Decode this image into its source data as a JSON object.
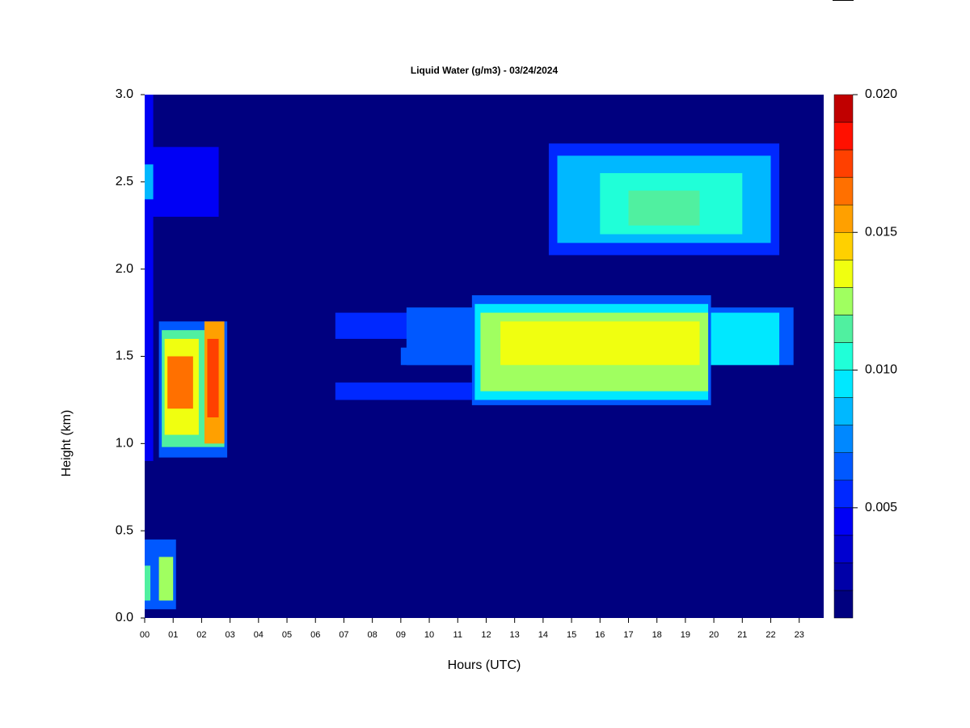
{
  "chart_data": {
    "type": "heatmap",
    "title": "Liquid Water (g/m3) - 03/24/2024",
    "xlabel": "Hours (UTC)",
    "ylabel": "Height (km)",
    "xlim": [
      0,
      23.86
    ],
    "ylim": [
      0,
      3
    ],
    "xticks": [
      {
        "value": 0,
        "label": "00"
      },
      {
        "value": 1,
        "label": "01"
      },
      {
        "value": 2,
        "label": "02"
      },
      {
        "value": 3,
        "label": "03"
      },
      {
        "value": 4,
        "label": "04"
      },
      {
        "value": 5,
        "label": "05"
      },
      {
        "value": 6,
        "label": "06"
      },
      {
        "value": 7,
        "label": "07"
      },
      {
        "value": 8,
        "label": "08"
      },
      {
        "value": 9,
        "label": "09"
      },
      {
        "value": 10,
        "label": "10"
      },
      {
        "value": 11,
        "label": "11"
      },
      {
        "value": 12,
        "label": "12"
      },
      {
        "value": 13,
        "label": "13"
      },
      {
        "value": 14,
        "label": "14"
      },
      {
        "value": 15,
        "label": "15"
      },
      {
        "value": 16,
        "label": "16"
      },
      {
        "value": 17,
        "label": "17"
      },
      {
        "value": 18,
        "label": "18"
      },
      {
        "value": 19,
        "label": "19"
      },
      {
        "value": 20,
        "label": "20"
      },
      {
        "value": 21,
        "label": "21"
      },
      {
        "value": 22,
        "label": "22"
      },
      {
        "value": 23,
        "label": "23"
      }
    ],
    "yticks": [
      {
        "value": 0,
        "label": "0.0"
      },
      0.5,
      {
        "value": 1,
        "label": "1.0"
      },
      1.5,
      {
        "value": 2,
        "label": "2.0"
      },
      2.5,
      {
        "value": 3,
        "label": "3.0"
      }
    ],
    "background": 0.0012,
    "patches": [
      {
        "x": [
          0,
          0.3
        ],
        "y": [
          0.9,
          3.0
        ],
        "value": 0.004
      },
      {
        "x": [
          0,
          2.6
        ],
        "y": [
          2.3,
          2.7
        ],
        "value": 0.004
      },
      {
        "x": [
          0,
          0.3
        ],
        "y": [
          2.4,
          2.6
        ],
        "value": 0.008
      },
      {
        "x": [
          0.5,
          2.9
        ],
        "y": [
          0.92,
          1.7
        ],
        "value": 0.006
      },
      {
        "x": [
          0.6,
          2.8
        ],
        "y": [
          0.98,
          1.65
        ],
        "value": 0.011
      },
      {
        "x": [
          0.7,
          1.9
        ],
        "y": [
          1.05,
          1.6
        ],
        "value": 0.013
      },
      {
        "x": [
          2.1,
          2.8
        ],
        "y": [
          1.0,
          1.7
        ],
        "value": 0.015
      },
      {
        "x": [
          0.8,
          1.7
        ],
        "y": [
          1.2,
          1.5
        ],
        "value": 0.016
      },
      {
        "x": [
          2.2,
          2.6
        ],
        "y": [
          1.15,
          1.6
        ],
        "value": 0.017
      },
      {
        "x": [
          0,
          1.1
        ],
        "y": [
          0.05,
          0.45
        ],
        "value": 0.006
      },
      {
        "x": [
          0,
          0.2
        ],
        "y": [
          0.1,
          0.3
        ],
        "value": 0.011
      },
      {
        "x": [
          0.5,
          1.0
        ],
        "y": [
          0.1,
          0.35
        ],
        "value": 0.012
      },
      {
        "x": [
          6.7,
          11.5
        ],
        "y": [
          1.25,
          1.35
        ],
        "value": 0.005
      },
      {
        "x": [
          6.7,
          11.5
        ],
        "y": [
          1.6,
          1.75
        ],
        "value": 0.005
      },
      {
        "x": [
          9,
          11.5
        ],
        "y": [
          1.45,
          1.55
        ],
        "value": 0.006
      },
      {
        "x": [
          9.2,
          22.8
        ],
        "y": [
          1.45,
          1.78
        ],
        "value": 0.006
      },
      {
        "x": [
          11.5,
          19.9
        ],
        "y": [
          1.22,
          1.85
        ],
        "value": 0.006
      },
      {
        "x": [
          11.6,
          19.8
        ],
        "y": [
          1.25,
          1.8
        ],
        "value": 0.009
      },
      {
        "x": [
          19.9,
          22.3
        ],
        "y": [
          1.45,
          1.75
        ],
        "value": 0.009
      },
      {
        "x": [
          11.8,
          19.8
        ],
        "y": [
          1.3,
          1.75
        ],
        "value": 0.012
      },
      {
        "x": [
          12.5,
          19.5
        ],
        "y": [
          1.45,
          1.7
        ],
        "value": 0.0135
      },
      {
        "x": [
          14.2,
          22.3
        ],
        "y": [
          2.08,
          2.72
        ],
        "value": 0.005
      },
      {
        "x": [
          14.5,
          22
        ],
        "y": [
          2.15,
          2.65
        ],
        "value": 0.008
      },
      {
        "x": [
          16,
          21
        ],
        "y": [
          2.2,
          2.55
        ],
        "value": 0.0105
      },
      {
        "x": [
          17,
          19.5
        ],
        "y": [
          2.25,
          2.45
        ],
        "value": 0.011
      }
    ],
    "colorbar": {
      "lim": [
        0.001,
        0.02
      ],
      "colors": [
        "#00007f",
        "#0000a8",
        "#0000d0",
        "#0000f5",
        "#0028ff",
        "#0058ff",
        "#0088ff",
        "#00b8ff",
        "#00e8ff",
        "#20ffd8",
        "#50f0a0",
        "#a0ff60",
        "#f0ff10",
        "#ffd000",
        "#ffa000",
        "#ff7000",
        "#ff4000",
        "#ff1000",
        "#c00000"
      ],
      "ticks": [
        {
          "value": 0.02,
          "label": "0.020"
        },
        0.015,
        {
          "value": 0.01,
          "label": "0.010"
        },
        0.005
      ]
    }
  }
}
